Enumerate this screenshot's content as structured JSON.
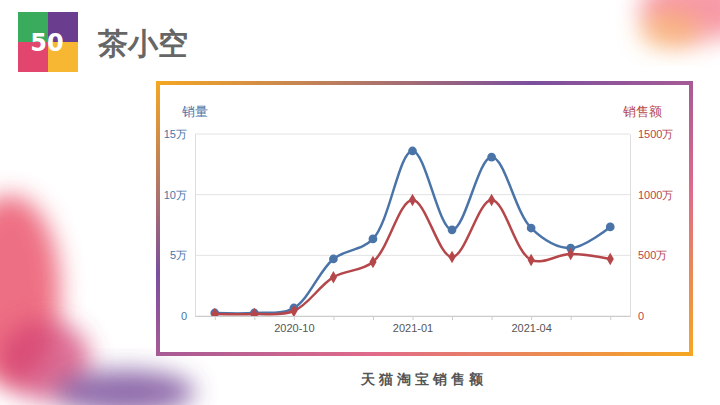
{
  "slide": {
    "number": "50",
    "title": "茶小空",
    "caption": "天猫淘宝销售额"
  },
  "chart_data": {
    "type": "line",
    "y_label": "销量",
    "y2_label": "销售额",
    "categories": [
      null,
      null,
      "2020-10",
      null,
      null,
      "2021-01",
      null,
      null,
      "2021-04",
      null,
      null
    ],
    "series": [
      {
        "color": "#4a74a8",
        "marker": "circle",
        "line_style": "smooth",
        "values": [
          2500,
          2500,
          6600,
          47000,
          63500,
          136000,
          71000,
          131000,
          72500,
          56000,
          73400
        ]
      },
      {
        "color": "#b5474b",
        "marker": "diamond",
        "line_style": "smooth",
        "axis": "y2",
        "values": [
          160000,
          160000,
          410000,
          3200000,
          4450000,
          9560000,
          4860000,
          9560000,
          4620000,
          5110000,
          4700000
        ]
      }
    ],
    "ylim": [
      0,
      150000
    ],
    "yticks": [
      0,
      {
        "value": 50000,
        "label": "5万"
      },
      {
        "value": 100000,
        "label": "10万"
      },
      {
        "value": 150000,
        "label": "15万"
      }
    ],
    "y2lim": [
      0,
      15000000
    ],
    "y2ticks": [
      0,
      {
        "value": 5000000,
        "label": "500万"
      },
      {
        "value": 10000000,
        "label": "1000万"
      },
      {
        "value": 15000000,
        "label": "1500万"
      }
    ],
    "grid": true
  }
}
